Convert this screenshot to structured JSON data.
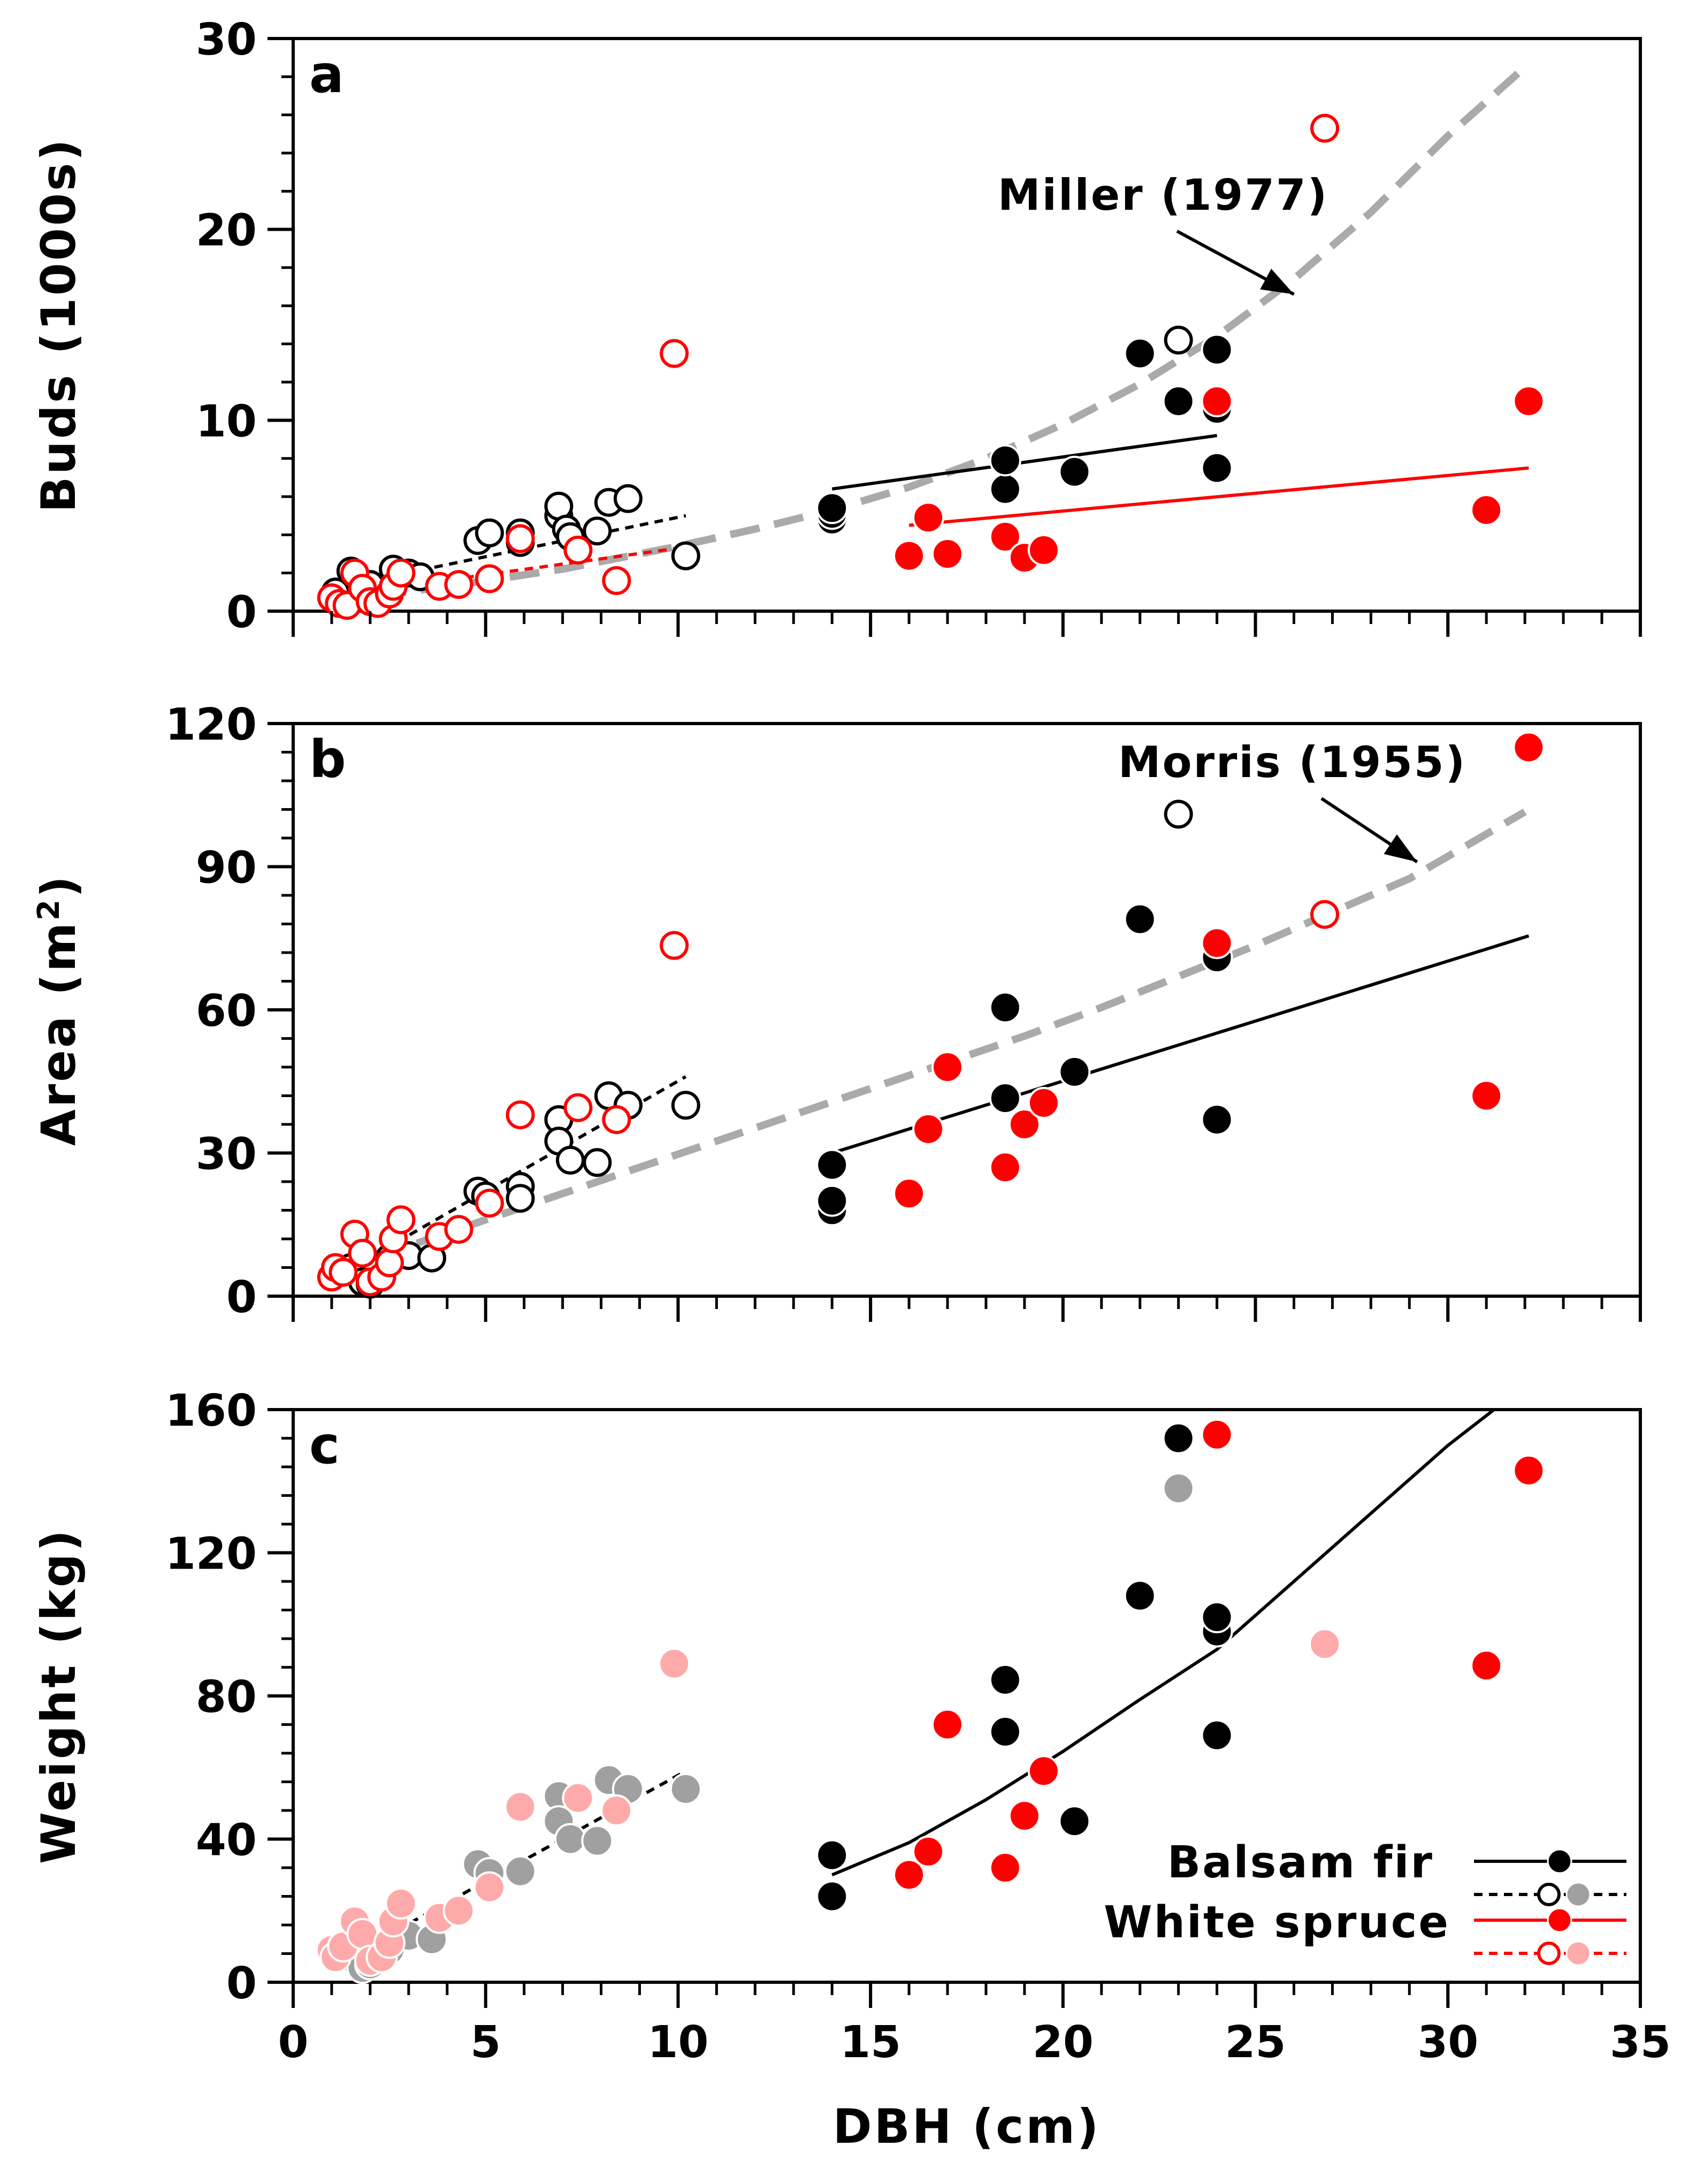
{
  "chart_data": [
    {
      "type": "scatter",
      "panel_label": "a",
      "title": "",
      "xlabel": "",
      "ylabel": "Buds (1000s)",
      "xlim": [
        0,
        35
      ],
      "ylim": [
        0,
        30
      ],
      "yticks": [
        0,
        10,
        20,
        30
      ],
      "ytick_labels": [
        "0",
        "10",
        "20",
        "30"
      ],
      "y_minor_step": 2,
      "show_x_tick_labels": false,
      "series": [
        {
          "name": "Balsam fir (large)",
          "color": "#000000",
          "filled": true,
          "points": [
            [
              14,
              4.8
            ],
            [
              14,
              5.1
            ],
            [
              14,
              5.4
            ],
            [
              18.5,
              6.4
            ],
            [
              18.5,
              7.9
            ],
            [
              20.3,
              7.3
            ],
            [
              22,
              13.5
            ],
            [
              23,
              11
            ],
            [
              24,
              7.5
            ],
            [
              24,
              10.6
            ],
            [
              24,
              13.7
            ]
          ]
        },
        {
          "name": "Balsam fir (small)",
          "color": "#000000",
          "filled": false,
          "points": [
            [
              1.1,
              1.0
            ],
            [
              1.5,
              2.1
            ],
            [
              2.0,
              1.4
            ],
            [
              2.6,
              2.2
            ],
            [
              3.0,
              2.0
            ],
            [
              3.3,
              1.8
            ],
            [
              4.8,
              3.7
            ],
            [
              5.1,
              4.1
            ],
            [
              5.9,
              3.6
            ],
            [
              5.9,
              4.1
            ],
            [
              6.9,
              5.0
            ],
            [
              6.9,
              5.5
            ],
            [
              7.1,
              4.3
            ],
            [
              7.2,
              3.9
            ],
            [
              7.9,
              4.2
            ],
            [
              8.2,
              5.7
            ],
            [
              8.7,
              5.9
            ],
            [
              10.2,
              2.9
            ],
            [
              23,
              14.2
            ],
            [
              24,
              11
            ]
          ]
        },
        {
          "name": "White spruce (large)",
          "color": "#FF0000",
          "filled": true,
          "points": [
            [
              16,
              2.9
            ],
            [
              16.5,
              4.9
            ],
            [
              17,
              3.0
            ],
            [
              18.5,
              3.9
            ],
            [
              19,
              2.8
            ],
            [
              19.5,
              3.2
            ],
            [
              24,
              11.0
            ],
            [
              31,
              5.3
            ],
            [
              32.1,
              11.0
            ]
          ]
        },
        {
          "name": "White spruce (small)",
          "color": "#FF0000",
          "filled": false,
          "points": [
            [
              1.0,
              0.7
            ],
            [
              1.2,
              0.4
            ],
            [
              1.4,
              0.3
            ],
            [
              1.6,
              2.0
            ],
            [
              1.8,
              1.2
            ],
            [
              2.0,
              0.5
            ],
            [
              2.2,
              0.4
            ],
            [
              2.5,
              0.9
            ],
            [
              2.6,
              1.3
            ],
            [
              2.8,
              2.0
            ],
            [
              3.8,
              1.3
            ],
            [
              4.3,
              1.4
            ],
            [
              5.1,
              1.7
            ],
            [
              5.9,
              3.8
            ],
            [
              7.4,
              3.2
            ],
            [
              8.4,
              1.6
            ],
            [
              9.9,
              13.5
            ],
            [
              26.8,
              25.3
            ]
          ]
        }
      ],
      "fits": [
        {
          "name": "Balsam fir small fit",
          "color": "#000000",
          "dash": "short",
          "x": [
            1.0,
            10.2
          ],
          "y": [
            1.2,
            5.0
          ]
        },
        {
          "name": "White spruce small fit",
          "color": "#FF0000",
          "dash": "short",
          "x": [
            1.0,
            10.0
          ],
          "y": [
            0.8,
            3.3
          ]
        },
        {
          "name": "Balsam fir large fit",
          "color": "#000000",
          "dash": "solid",
          "x": [
            14,
            24
          ],
          "y": [
            6.4,
            9.2
          ]
        },
        {
          "name": "White spruce large fit",
          "color": "#FF0000",
          "dash": "solid",
          "x": [
            16,
            32.1
          ],
          "y": [
            4.5,
            7.5
          ]
        }
      ],
      "reference_curve": {
        "name": "Miller (1977)",
        "color": "#AAAAAA",
        "x": [
          1,
          4,
          7,
          10,
          12,
          14,
          16,
          18,
          20,
          22,
          24,
          26,
          28,
          30,
          32
        ],
        "y": [
          0.5,
          1.3,
          2.2,
          3.4,
          4.3,
          5.3,
          6.5,
          8.0,
          9.8,
          11.9,
          14.4,
          17.4,
          20.9,
          24.9,
          28.5
        ]
      },
      "annotation": {
        "text": "Miller (1977)",
        "arrow_to": [
          26,
          16.6
        ]
      }
    },
    {
      "type": "scatter",
      "panel_label": "b",
      "title": "",
      "xlabel": "",
      "ylabel_main": "Area (m",
      "ylabel_sup": "2",
      "ylabel_end": ")",
      "xlim": [
        0,
        35
      ],
      "ylim": [
        0,
        120
      ],
      "yticks": [
        0,
        30,
        60,
        90,
        120
      ],
      "ytick_labels": [
        "0",
        "30",
        "60",
        "90",
        "120"
      ],
      "y_minor_step": 6,
      "show_x_tick_labels": false,
      "series": [
        {
          "name": "Balsam fir (large)",
          "color": "#000000",
          "filled": true,
          "points": [
            [
              14,
              18
            ],
            [
              14,
              20
            ],
            [
              14,
              27.5
            ],
            [
              18.5,
              41.5
            ],
            [
              18.5,
              60.5
            ],
            [
              20.3,
              47
            ],
            [
              22,
              79
            ],
            [
              24,
              37
            ],
            [
              24,
              71
            ]
          ]
        },
        {
          "name": "Balsam fir (small)",
          "color": "#000000",
          "filled": false,
          "points": [
            [
              1.5,
              6
            ],
            [
              1.8,
              3
            ],
            [
              2.0,
              2.5
            ],
            [
              2.5,
              8
            ],
            [
              3.0,
              8.5
            ],
            [
              3.6,
              8
            ],
            [
              4.8,
              22
            ],
            [
              5.0,
              21
            ],
            [
              5.9,
              23
            ],
            [
              5.9,
              20.5
            ],
            [
              6.9,
              37
            ],
            [
              6.9,
              32.5
            ],
            [
              7.2,
              28.5
            ],
            [
              7.9,
              28
            ],
            [
              8.2,
              42
            ],
            [
              8.7,
              40
            ],
            [
              10.2,
              40
            ],
            [
              23,
              101
            ]
          ]
        },
        {
          "name": "White spruce (large)",
          "color": "#FF0000",
          "filled": true,
          "points": [
            [
              16,
              21.5
            ],
            [
              16.5,
              35
            ],
            [
              17,
              48
            ],
            [
              18.5,
              27
            ],
            [
              19,
              36
            ],
            [
              19.5,
              40.5
            ],
            [
              24,
              74
            ],
            [
              31,
              42
            ],
            [
              32.1,
              115
            ]
          ]
        },
        {
          "name": "White spruce (small)",
          "color": "#FF0000",
          "filled": false,
          "points": [
            [
              1.0,
              4
            ],
            [
              1.1,
              6
            ],
            [
              1.3,
              5
            ],
            [
              1.6,
              13
            ],
            [
              1.8,
              9
            ],
            [
              2.0,
              3
            ],
            [
              2.3,
              4
            ],
            [
              2.5,
              7
            ],
            [
              2.6,
              12
            ],
            [
              2.8,
              16
            ],
            [
              3.8,
              12.5
            ],
            [
              4.3,
              14
            ],
            [
              5.1,
              19.5
            ],
            [
              5.9,
              38
            ],
            [
              7.4,
              39.5
            ],
            [
              8.4,
              37
            ],
            [
              9.9,
              73.5
            ],
            [
              26.8,
              80
            ]
          ]
        }
      ],
      "fits": [
        {
          "name": "Balsam fir small fit",
          "color": "#000000",
          "dash": "short",
          "x": [
            1.0,
            10.2
          ],
          "y": [
            3.5,
            46
          ]
        },
        {
          "name": "Balsam fir large fit",
          "color": "#000000",
          "dash": "solid",
          "x": [
            14,
            32.1
          ],
          "y": [
            30,
            75.5
          ]
        }
      ],
      "reference_curve": {
        "name": "Morris (1955)",
        "color": "#AAAAAA",
        "x": [
          1,
          3,
          5,
          7,
          9,
          11,
          13,
          15,
          17,
          19,
          21,
          23,
          25,
          27,
          29,
          32
        ],
        "y": [
          5,
          10.5,
          16,
          21.5,
          27,
          32.5,
          38,
          43.5,
          49,
          54.5,
          60.5,
          67,
          73.5,
          80.5,
          87.5,
          101.5
        ]
      },
      "annotation": {
        "text": "Morris (1955)",
        "arrow_to": [
          29.2,
          91
        ]
      }
    },
    {
      "type": "scatter",
      "panel_label": "c",
      "title": "",
      "xlabel": "DBH (cm)",
      "ylabel": "Weight (kg)",
      "xlim": [
        0,
        35
      ],
      "ylim": [
        0,
        160
      ],
      "xticks": [
        0,
        5,
        10,
        15,
        20,
        25,
        30,
        35
      ],
      "xtick_labels": [
        "0",
        "5",
        "10",
        "15",
        "20",
        "25",
        "30",
        "35"
      ],
      "yticks": [
        0,
        40,
        80,
        120,
        160
      ],
      "ytick_labels": [
        "0",
        "40",
        "80",
        "120",
        "160"
      ],
      "y_minor_step": 8,
      "show_x_tick_labels": true,
      "series": [
        {
          "name": "Balsam fir (large)",
          "color": "#000000",
          "filled": true,
          "points": [
            [
              14,
              24
            ],
            [
              14,
              35.5
            ],
            [
              18.5,
              70
            ],
            [
              18.5,
              84.5
            ],
            [
              20.3,
              45
            ],
            [
              22,
              108
            ],
            [
              23,
              152
            ],
            [
              24,
              69
            ],
            [
              24,
              98
            ],
            [
              24,
              102
            ]
          ]
        },
        {
          "name": "Balsam fir (small)",
          "color": "#A0A0A0",
          "filled": true,
          "points": [
            [
              1.5,
              7
            ],
            [
              1.8,
              4
            ],
            [
              2.0,
              5
            ],
            [
              2.5,
              9
            ],
            [
              3.0,
              13
            ],
            [
              3.6,
              12
            ],
            [
              4.8,
              33
            ],
            [
              5.1,
              30.5
            ],
            [
              5.9,
              31
            ],
            [
              6.9,
              52
            ],
            [
              6.9,
              45
            ],
            [
              7.2,
              40
            ],
            [
              7.9,
              39.5
            ],
            [
              8.2,
              56.5
            ],
            [
              8.7,
              54
            ],
            [
              10.2,
              54
            ],
            [
              23,
              138
            ]
          ]
        },
        {
          "name": "White spruce (large)",
          "color": "#FF0000",
          "filled": true,
          "points": [
            [
              16,
              30
            ],
            [
              16.5,
              36.5
            ],
            [
              17,
              72
            ],
            [
              18.5,
              32
            ],
            [
              19,
              46.5
            ],
            [
              19.5,
              59
            ],
            [
              24,
              153
            ],
            [
              31,
              88.5
            ],
            [
              32.1,
              143
            ]
          ]
        },
        {
          "name": "White spruce (small)",
          "color": "#FFAAAA",
          "filled": true,
          "points": [
            [
              1.0,
              9
            ],
            [
              1.1,
              7
            ],
            [
              1.3,
              10
            ],
            [
              1.6,
              17
            ],
            [
              1.8,
              13.5
            ],
            [
              2.0,
              6
            ],
            [
              2.3,
              7
            ],
            [
              2.5,
              11
            ],
            [
              2.6,
              17
            ],
            [
              2.8,
              22
            ],
            [
              3.8,
              18
            ],
            [
              4.3,
              20
            ],
            [
              5.1,
              26.5
            ],
            [
              5.9,
              49
            ],
            [
              7.4,
              51.5
            ],
            [
              8.4,
              48
            ],
            [
              9.9,
              89
            ],
            [
              26.8,
              94.5
            ]
          ]
        }
      ],
      "fits": [
        {
          "name": "Balsam fir small fit",
          "color": "#000000",
          "dash": "short",
          "x": [
            1.0,
            10.2
          ],
          "y": [
            4.5,
            59
          ]
        },
        {
          "name": "Balsam fir large fit",
          "color": "#000000",
          "dash": "solid",
          "x": [
            14,
            16,
            18,
            20,
            22,
            24,
            26,
            28,
            30,
            31.2
          ],
          "y": [
            30,
            39,
            51,
            64.5,
            79,
            93,
            112,
            131,
            150,
            160
          ]
        }
      ],
      "legend": {
        "placement": "bottom-right",
        "entries": [
          {
            "label": "Balsam fir",
            "solid_color": "#000000",
            "solid_marker": "#000000",
            "dashed_color": "#000000",
            "dashed_markers": [
              "open-black",
              "#A0A0A0"
            ]
          },
          {
            "label": "White spruce",
            "solid_color": "#FF0000",
            "solid_marker": "#FF0000",
            "dashed_color": "#FF0000",
            "dashed_markers": [
              "open-red",
              "#FFAAAA"
            ]
          }
        ]
      }
    }
  ]
}
